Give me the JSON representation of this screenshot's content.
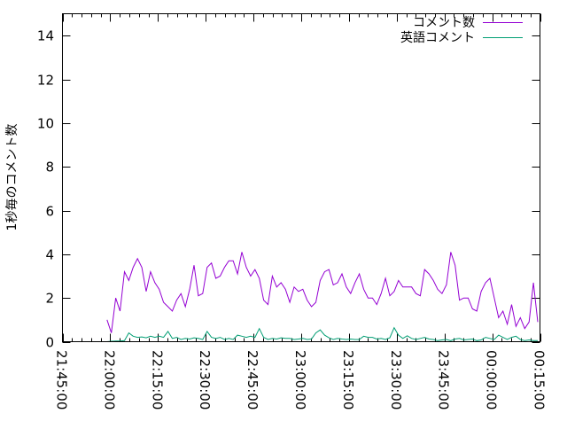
{
  "chart_data": {
    "type": "line",
    "title": "",
    "xlabel": "",
    "ylabel": "1秒毎のコメント数",
    "ylim": [
      0,
      15
    ],
    "yticks": [
      0,
      2,
      4,
      6,
      8,
      10,
      12,
      14
    ],
    "xlim": [
      "21:45:00",
      "00:15:00"
    ],
    "xticks": [
      "21:45:00",
      "22:00:00",
      "22:15:00",
      "22:30:00",
      "22:45:00",
      "23:00:00",
      "23:15:00",
      "23:30:00",
      "23:45:00",
      "00:00:00",
      "00:15:00"
    ],
    "grid": false,
    "legend_position": "top-right",
    "x_start": "21:59:00",
    "x_step_seconds": 82,
    "series": [
      {
        "name": "コメント数",
        "color": "#9400d3",
        "values": [
          1.0,
          0.4,
          2.0,
          1.4,
          3.2,
          2.8,
          3.4,
          3.8,
          3.4,
          2.3,
          3.2,
          2.7,
          2.4,
          1.8,
          1.6,
          1.4,
          1.9,
          2.2,
          1.6,
          2.4,
          3.5,
          2.1,
          2.2,
          3.4,
          3.6,
          2.9,
          3.0,
          3.4,
          3.7,
          3.7,
          3.1,
          4.1,
          3.4,
          3.0,
          3.3,
          2.9,
          1.9,
          1.7,
          3.0,
          2.5,
          2.7,
          2.4,
          1.8,
          2.5,
          2.3,
          2.4,
          1.9,
          1.6,
          1.8,
          2.8,
          3.2,
          3.3,
          2.6,
          2.7,
          3.1,
          2.5,
          2.2,
          2.7,
          3.1,
          2.4,
          2.0,
          2.0,
          1.7,
          2.2,
          2.9,
          2.1,
          2.3,
          2.8,
          2.5,
          2.5,
          2.5,
          2.2,
          2.1,
          3.3,
          3.1,
          2.8,
          2.4,
          2.2,
          2.6,
          4.1,
          3.5,
          1.9,
          2.0,
          2.0,
          1.5,
          1.4,
          2.3,
          2.7,
          2.9,
          2.0,
          1.1,
          1.4,
          0.8,
          1.7,
          0.7,
          1.1,
          0.6,
          0.9,
          2.7,
          0.9
        ]
      },
      {
        "name": "英語コメント",
        "color": "#009e73",
        "values": [
          0.0,
          0.02,
          0.03,
          0.03,
          0.05,
          0.4,
          0.25,
          0.2,
          0.22,
          0.18,
          0.25,
          0.2,
          0.25,
          0.2,
          0.47,
          0.15,
          0.2,
          0.1,
          0.15,
          0.12,
          0.18,
          0.15,
          0.1,
          0.47,
          0.2,
          0.15,
          0.2,
          0.1,
          0.15,
          0.1,
          0.3,
          0.25,
          0.2,
          0.25,
          0.2,
          0.6,
          0.2,
          0.1,
          0.15,
          0.12,
          0.18,
          0.15,
          0.15,
          0.1,
          0.12,
          0.15,
          0.1,
          0.12,
          0.4,
          0.54,
          0.3,
          0.18,
          0.1,
          0.15,
          0.12,
          0.1,
          0.12,
          0.1,
          0.1,
          0.25,
          0.2,
          0.2,
          0.12,
          0.15,
          0.1,
          0.18,
          0.64,
          0.3,
          0.15,
          0.27,
          0.15,
          0.1,
          0.15,
          0.2,
          0.12,
          0.1,
          0.05,
          0.08,
          0.1,
          0.05,
          0.12,
          0.15,
          0.08,
          0.1,
          0.12,
          0.05,
          0.08,
          0.2,
          0.15,
          0.1,
          0.3,
          0.2,
          0.1,
          0.2,
          0.25,
          0.1,
          0.05,
          0.08,
          0.05,
          0.05
        ]
      }
    ]
  }
}
